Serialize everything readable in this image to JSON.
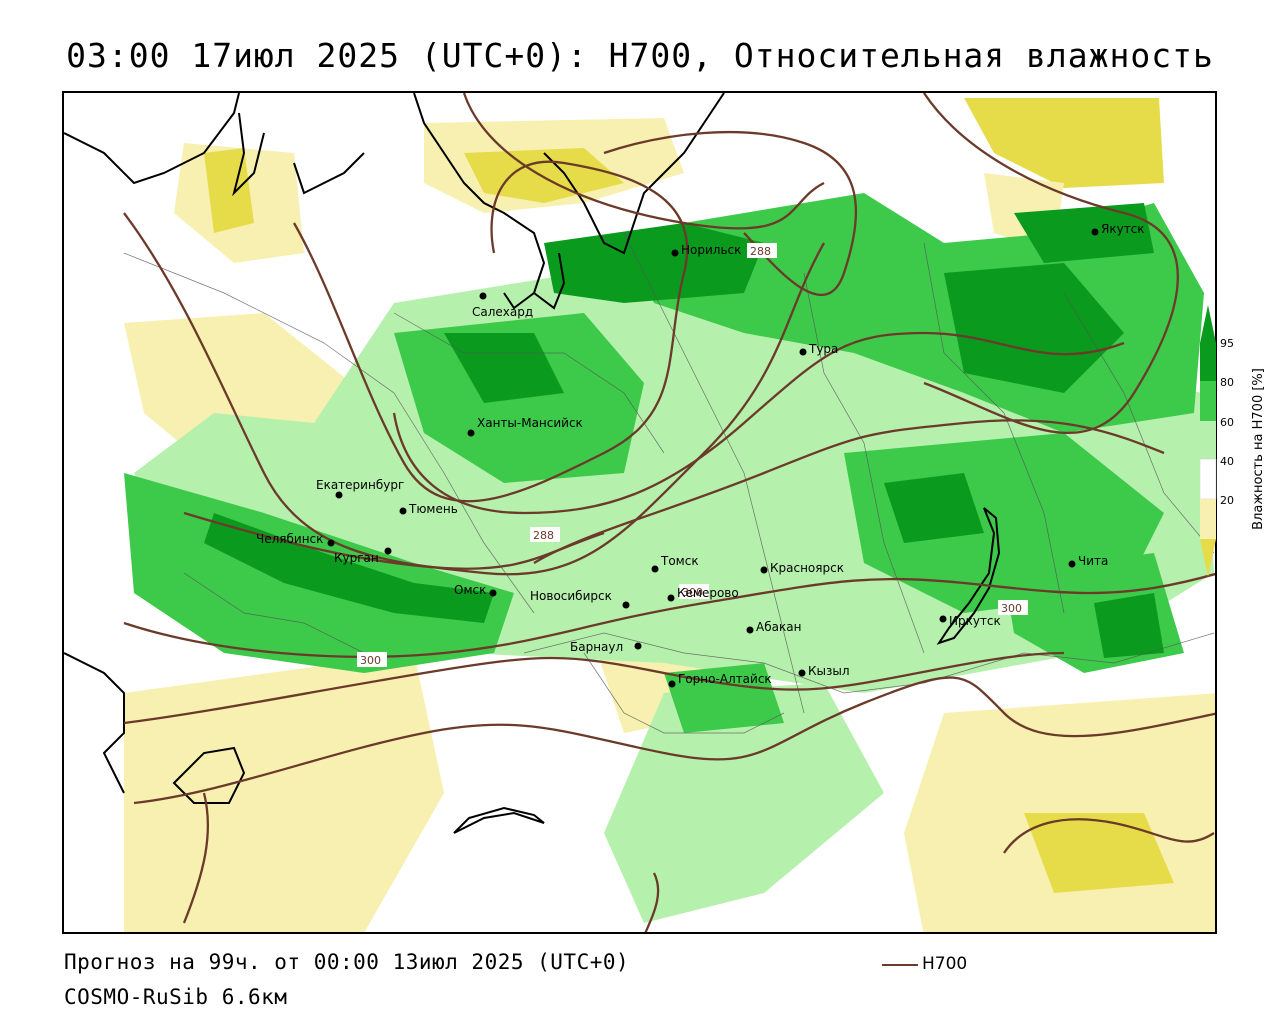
{
  "header": {
    "title": "03:00 17июл 2025 (UTC+0): H700, Относительная влажность"
  },
  "footer": {
    "forecast_line": "Прогноз на 99ч. от 00:00 13июл 2025 (UTC+0)",
    "model_line": "COSMO-RuSib 6.6км",
    "contour_legend": "H700"
  },
  "colorbar": {
    "title": "Влажность на H700 [%]",
    "ticks": [
      "95",
      "80",
      "60",
      "40",
      "20"
    ],
    "colors": {
      "dark_green": "#0a9a1e",
      "green": "#3dc94a",
      "light_green": "#b6f0ad",
      "white": "#ffffff",
      "light_yellow": "#f7f0b0",
      "yellow": "#e6dc4a"
    }
  },
  "contour_labels": [
    "288",
    "288",
    "300",
    "300",
    "300"
  ],
  "cities": [
    {
      "name": "Норильск"
    },
    {
      "name": "Якутск"
    },
    {
      "name": "Салехард"
    },
    {
      "name": "Тура"
    },
    {
      "name": "Ханты-Мансийск"
    },
    {
      "name": "Екатеринбург"
    },
    {
      "name": "Тюмень"
    },
    {
      "name": "Челябинск"
    },
    {
      "name": "Курган"
    },
    {
      "name": "Омск"
    },
    {
      "name": "Томск"
    },
    {
      "name": "Новосибирск"
    },
    {
      "name": "Кемерово"
    },
    {
      "name": "Красноярск"
    },
    {
      "name": "Абакан"
    },
    {
      "name": "Барнаул"
    },
    {
      "name": "Горно-Алтайск"
    },
    {
      "name": "Кызыл"
    },
    {
      "name": "Иркутск"
    },
    {
      "name": "Чита"
    }
  ],
  "colors": {
    "contour": "#6b3a2a",
    "coast": "#000000",
    "border": "#555555"
  }
}
